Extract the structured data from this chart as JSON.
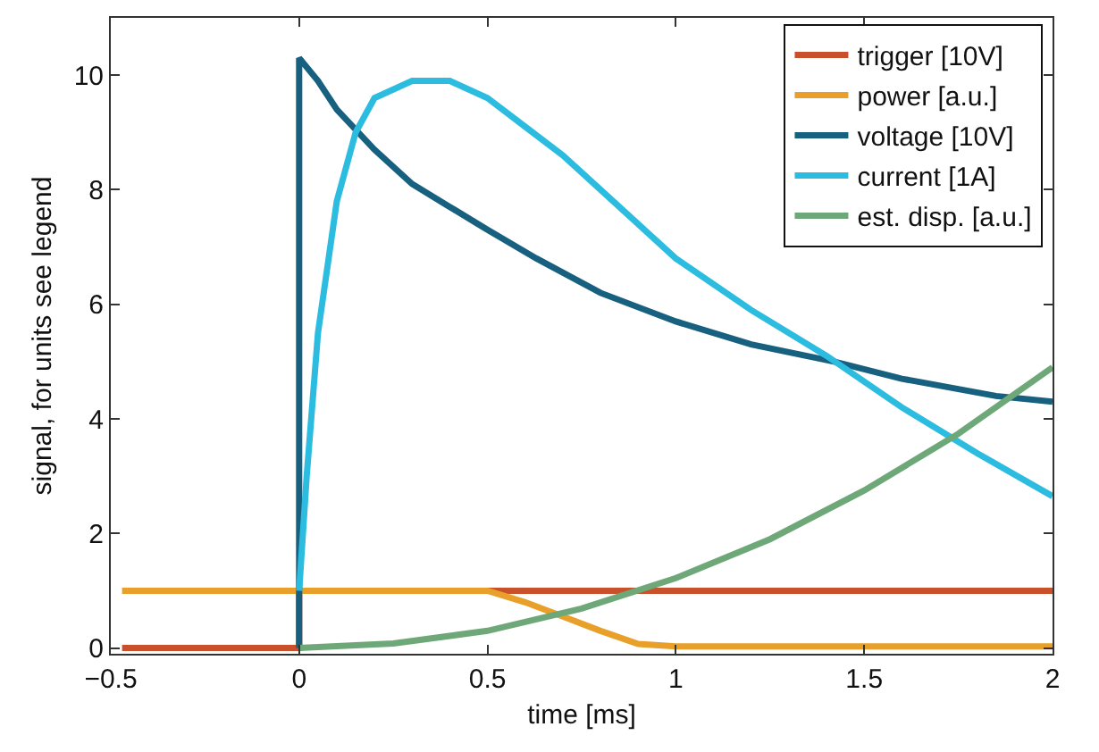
{
  "chart_data": {
    "type": "line",
    "xlabel": "time [ms]",
    "ylabel": "signal, for units see legend",
    "xlim": [
      -0.5,
      2
    ],
    "ylim": [
      -0.1,
      11
    ],
    "xticks": [
      {
        "value": -0.5,
        "label": "−0.5"
      },
      0,
      0.5,
      1,
      1.5,
      2
    ],
    "yticks": [
      0,
      2,
      4,
      6,
      8,
      10
    ],
    "legend": "top right",
    "line_style": "solid",
    "marker": "none",
    "series": [
      {
        "name": "trigger [10V]",
        "color": "#c8502a",
        "x": [
          -0.47,
          0,
          0,
          2
        ],
        "values": [
          0,
          0,
          1,
          1
        ]
      },
      {
        "name": "power [a.u.]",
        "color": "#e8a02a",
        "x": [
          -0.47,
          0,
          0.5,
          0.6,
          0.7,
          0.8,
          0.9,
          1.0,
          2.0
        ],
        "values": [
          1.0,
          1.0,
          1.0,
          0.8,
          0.55,
          0.3,
          0.07,
          0.03,
          0.03
        ]
      },
      {
        "name": "voltage [10V]",
        "color": "#17607f",
        "x": [
          0,
          0,
          0.05,
          0.1,
          0.2,
          0.3,
          0.4,
          0.5,
          0.63,
          0.8,
          1.0,
          1.2,
          1.42,
          1.6,
          1.85,
          2.0
        ],
        "values": [
          0,
          10.3,
          9.9,
          9.4,
          8.7,
          8.1,
          7.7,
          7.3,
          6.8,
          6.2,
          5.7,
          5.3,
          5.0,
          4.7,
          4.4,
          4.3
        ]
      },
      {
        "name": "current [1A]",
        "color": "#2bbce0",
        "x": [
          0,
          0.02,
          0.05,
          0.1,
          0.15,
          0.2,
          0.3,
          0.4,
          0.5,
          0.6,
          0.7,
          0.8,
          0.9,
          1.0,
          1.2,
          1.4,
          1.6,
          1.8,
          2.0
        ],
        "values": [
          1,
          3,
          5.5,
          7.8,
          9.0,
          9.6,
          9.9,
          9.9,
          9.6,
          9.1,
          8.6,
          8.0,
          7.4,
          6.8,
          5.9,
          5.1,
          4.2,
          3.4,
          2.65
        ]
      },
      {
        "name": "est. disp. [a.u.]",
        "color": "#6fa878",
        "x": [
          0,
          0.25,
          0.5,
          0.75,
          1.0,
          1.25,
          1.5,
          1.75,
          2.0
        ],
        "values": [
          0,
          0.08,
          0.3,
          0.69,
          1.22,
          1.9,
          2.75,
          3.74,
          4.9
        ]
      }
    ]
  }
}
